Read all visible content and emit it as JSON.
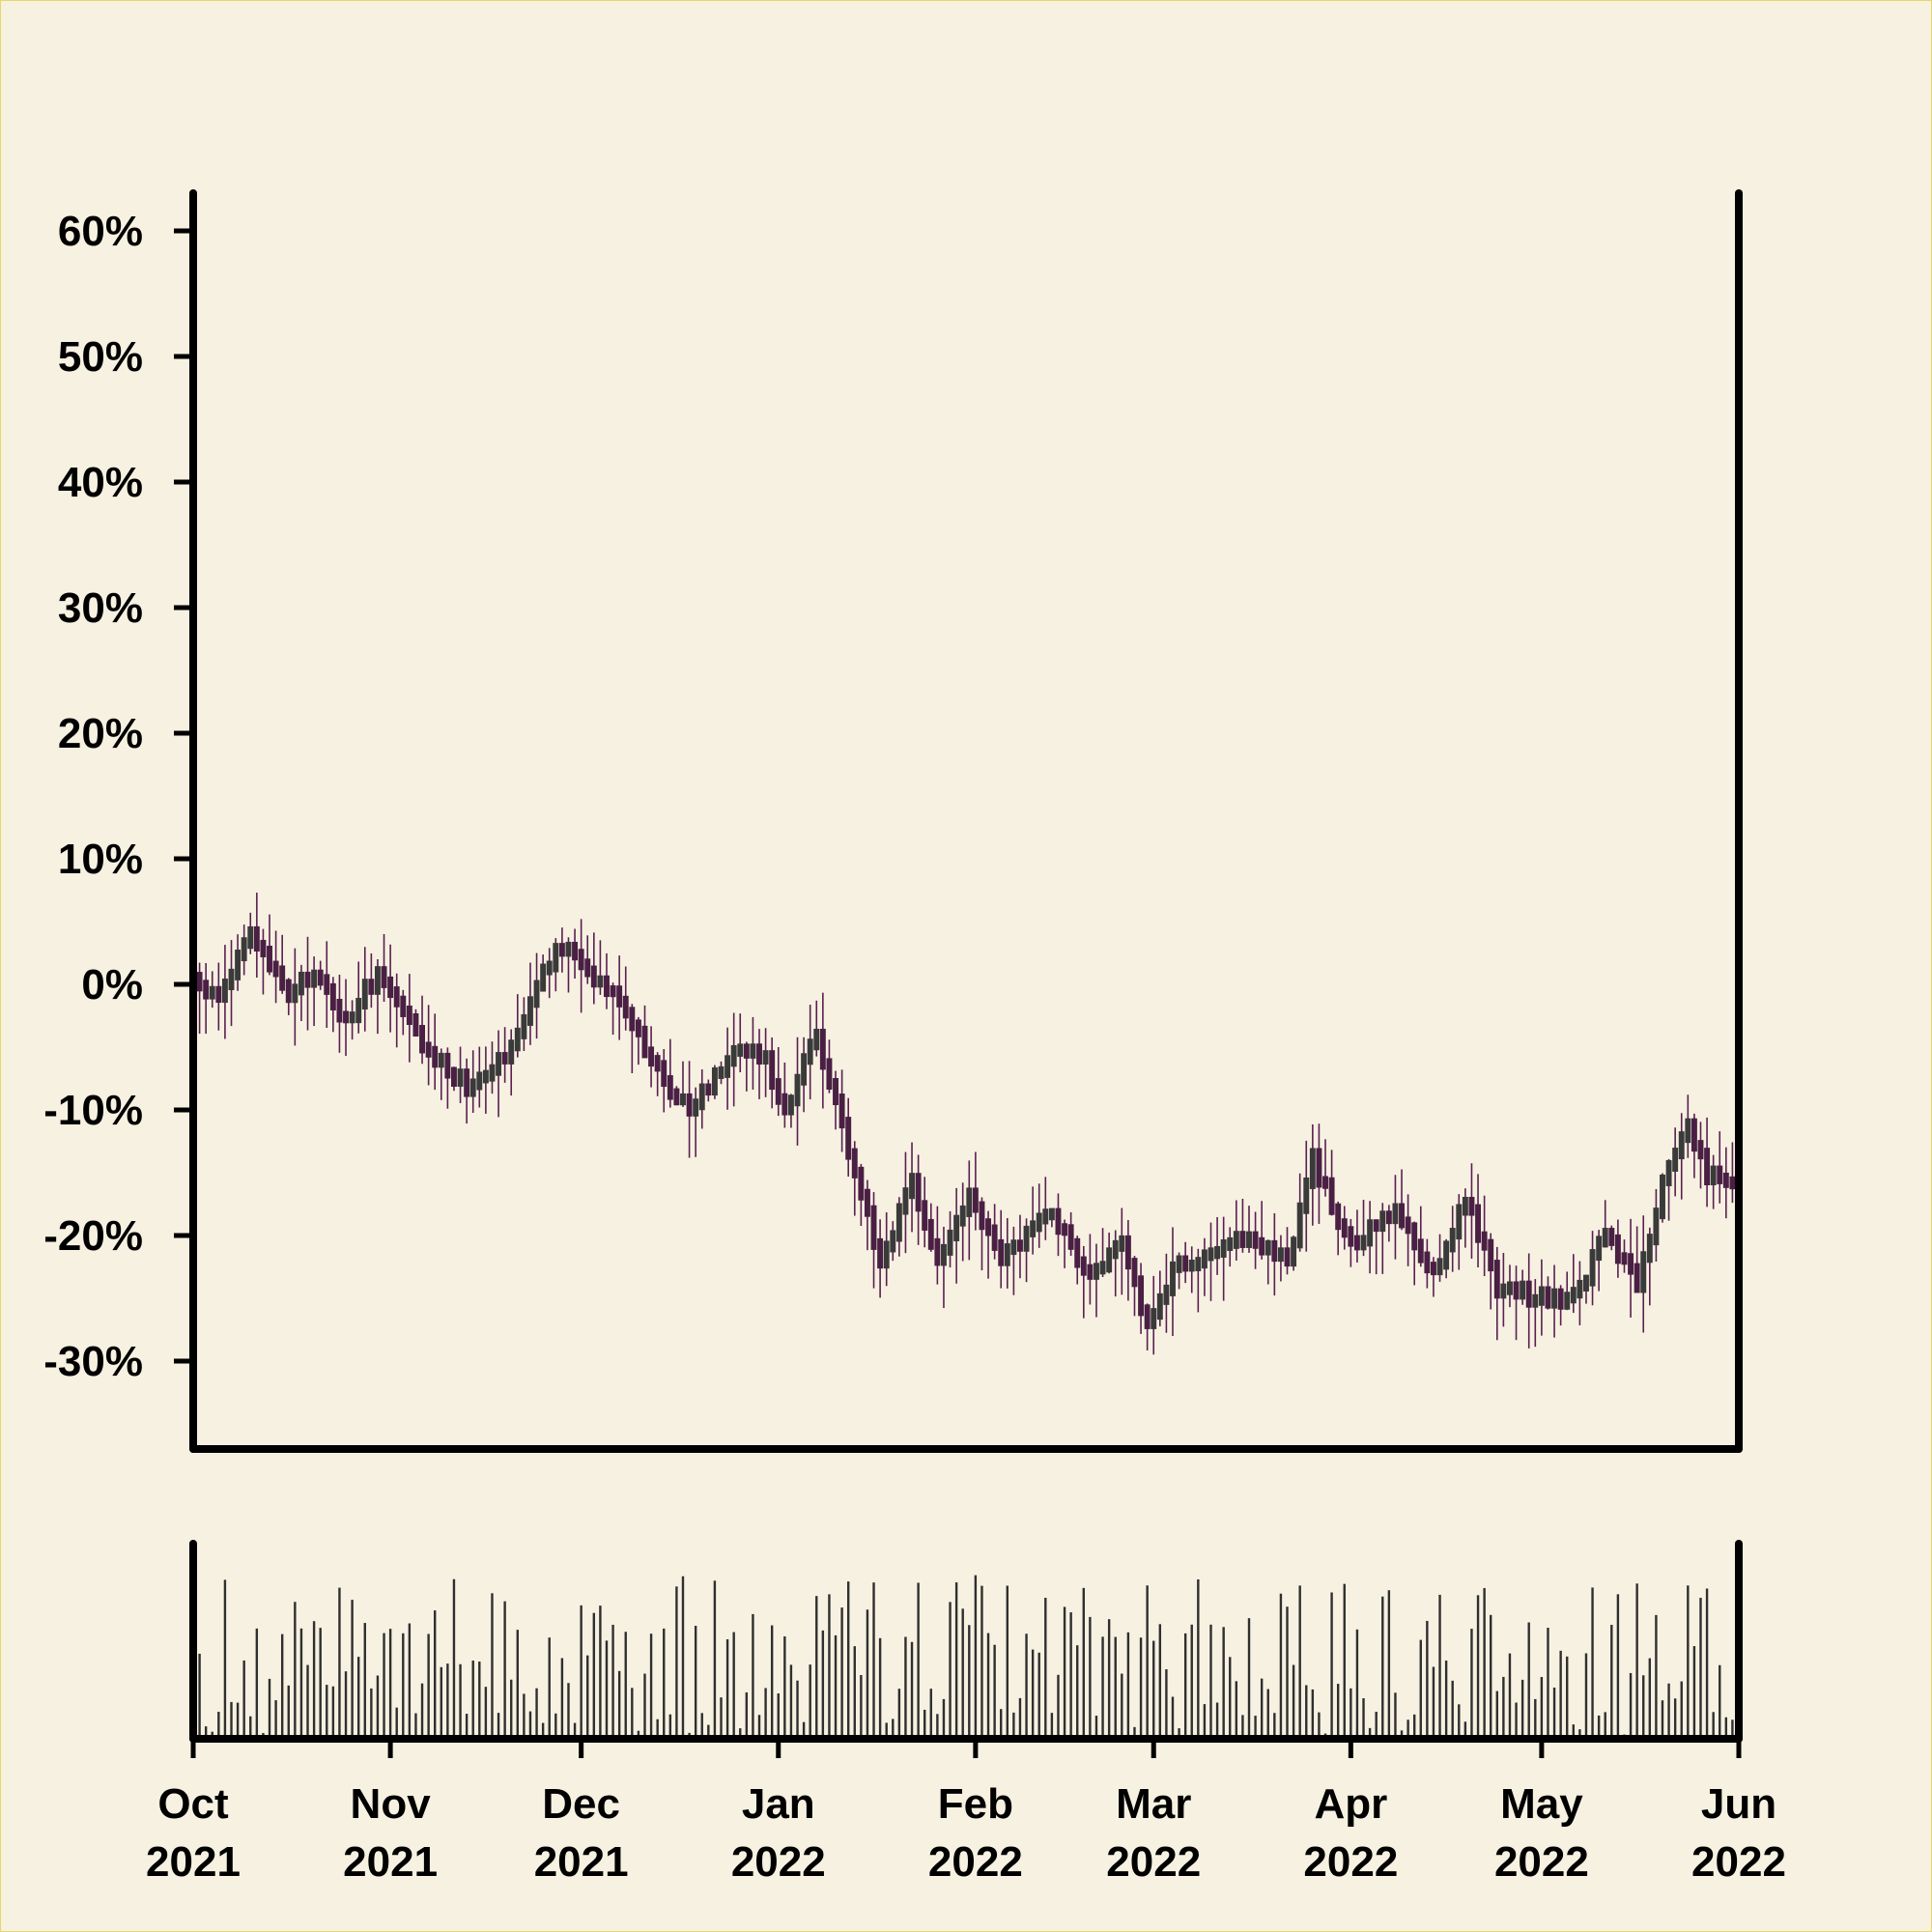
{
  "chart_data": {
    "type": "candlestick",
    "x_range": [
      "2021-10-01",
      "2022-06-01"
    ],
    "y_range": [
      -0.37,
      0.63
    ],
    "y_ticks": [
      {
        "value": 0.6,
        "label": "60%"
      },
      {
        "value": 0.5,
        "label": "50%"
      },
      {
        "value": 0.4,
        "label": "40%"
      },
      {
        "value": 0.3,
        "label": "30%"
      },
      {
        "value": 0.2,
        "label": "20%"
      },
      {
        "value": 0.1,
        "label": "10%"
      },
      {
        "value": 0.0,
        "label": "0%"
      },
      {
        "value": -0.1,
        "label": "-10%"
      },
      {
        "value": -0.2,
        "label": "-20%"
      },
      {
        "value": -0.3,
        "label": "-30%"
      }
    ],
    "x_ticks": [
      {
        "date": "2021-10-01",
        "month": "Oct",
        "year": "2021"
      },
      {
        "date": "2021-11-01",
        "month": "Nov",
        "year": "2021"
      },
      {
        "date": "2021-12-01",
        "month": "Dec",
        "year": "2021"
      },
      {
        "date": "2022-01-01",
        "month": "Jan",
        "year": "2022"
      },
      {
        "date": "2022-02-01",
        "month": "Feb",
        "year": "2022"
      },
      {
        "date": "2022-03-01",
        "month": "Mar",
        "year": "2022"
      },
      {
        "date": "2022-04-01",
        "month": "Apr",
        "year": "2022"
      },
      {
        "date": "2022-05-01",
        "month": "May",
        "year": "2022"
      },
      {
        "date": "2022-06-01",
        "month": "Jun",
        "year": "2022"
      }
    ],
    "close_path": [
      {
        "date": "2021-10-01",
        "value": 0.0
      },
      {
        "date": "2021-10-05",
        "value": -0.01
      },
      {
        "date": "2021-10-10",
        "value": 0.04
      },
      {
        "date": "2021-10-16",
        "value": -0.01
      },
      {
        "date": "2021-10-20",
        "value": 0.01
      },
      {
        "date": "2021-10-25",
        "value": -0.03
      },
      {
        "date": "2021-10-30",
        "value": 0.01
      },
      {
        "date": "2021-11-06",
        "value": -0.05
      },
      {
        "date": "2021-11-13",
        "value": -0.08
      },
      {
        "date": "2021-11-20",
        "value": -0.05
      },
      {
        "date": "2021-11-24",
        "value": 0.0
      },
      {
        "date": "2021-11-28",
        "value": 0.03
      },
      {
        "date": "2021-12-07",
        "value": -0.01
      },
      {
        "date": "2021-12-13",
        "value": -0.07
      },
      {
        "date": "2021-12-18",
        "value": -0.1
      },
      {
        "date": "2021-12-25",
        "value": -0.05
      },
      {
        "date": "2021-12-30",
        "value": -0.06
      },
      {
        "date": "2022-01-02",
        "value": -0.1
      },
      {
        "date": "2022-01-07",
        "value": -0.04
      },
      {
        "date": "2022-01-12",
        "value": -0.13
      },
      {
        "date": "2022-01-17",
        "value": -0.22
      },
      {
        "date": "2022-01-22",
        "value": -0.16
      },
      {
        "date": "2022-01-26",
        "value": -0.22
      },
      {
        "date": "2022-01-31",
        "value": -0.17
      },
      {
        "date": "2022-02-05",
        "value": -0.22
      },
      {
        "date": "2022-02-12",
        "value": -0.18
      },
      {
        "date": "2022-02-19",
        "value": -0.23
      },
      {
        "date": "2022-02-24",
        "value": -0.21
      },
      {
        "date": "2022-02-28",
        "value": -0.27
      },
      {
        "date": "2022-03-05",
        "value": -0.22
      },
      {
        "date": "2022-03-10",
        "value": -0.22
      },
      {
        "date": "2022-03-16",
        "value": -0.2
      },
      {
        "date": "2022-03-22",
        "value": -0.22
      },
      {
        "date": "2022-03-26",
        "value": -0.14
      },
      {
        "date": "2022-04-01",
        "value": -0.21
      },
      {
        "date": "2022-04-08",
        "value": -0.18
      },
      {
        "date": "2022-04-14",
        "value": -0.23
      },
      {
        "date": "2022-04-19",
        "value": -0.17
      },
      {
        "date": "2022-04-24",
        "value": -0.24
      },
      {
        "date": "2022-05-01",
        "value": -0.25
      },
      {
        "date": "2022-05-06",
        "value": -0.25
      },
      {
        "date": "2022-05-11",
        "value": -0.2
      },
      {
        "date": "2022-05-16",
        "value": -0.24
      },
      {
        "date": "2022-05-20",
        "value": -0.16
      },
      {
        "date": "2022-05-24",
        "value": -0.11
      },
      {
        "date": "2022-05-27",
        "value": -0.15
      },
      {
        "date": "2022-06-01",
        "value": -0.16
      }
    ],
    "legend": "none",
    "grid": false,
    "colors": {
      "background": "#f6f1e1",
      "border": "#e8d66a",
      "axis": "#000000",
      "candle_up": "#3a3a3a",
      "candle_down": "#4a1f44",
      "wick": "#5a1f50",
      "volume_bar": "#2f2f2f"
    }
  }
}
